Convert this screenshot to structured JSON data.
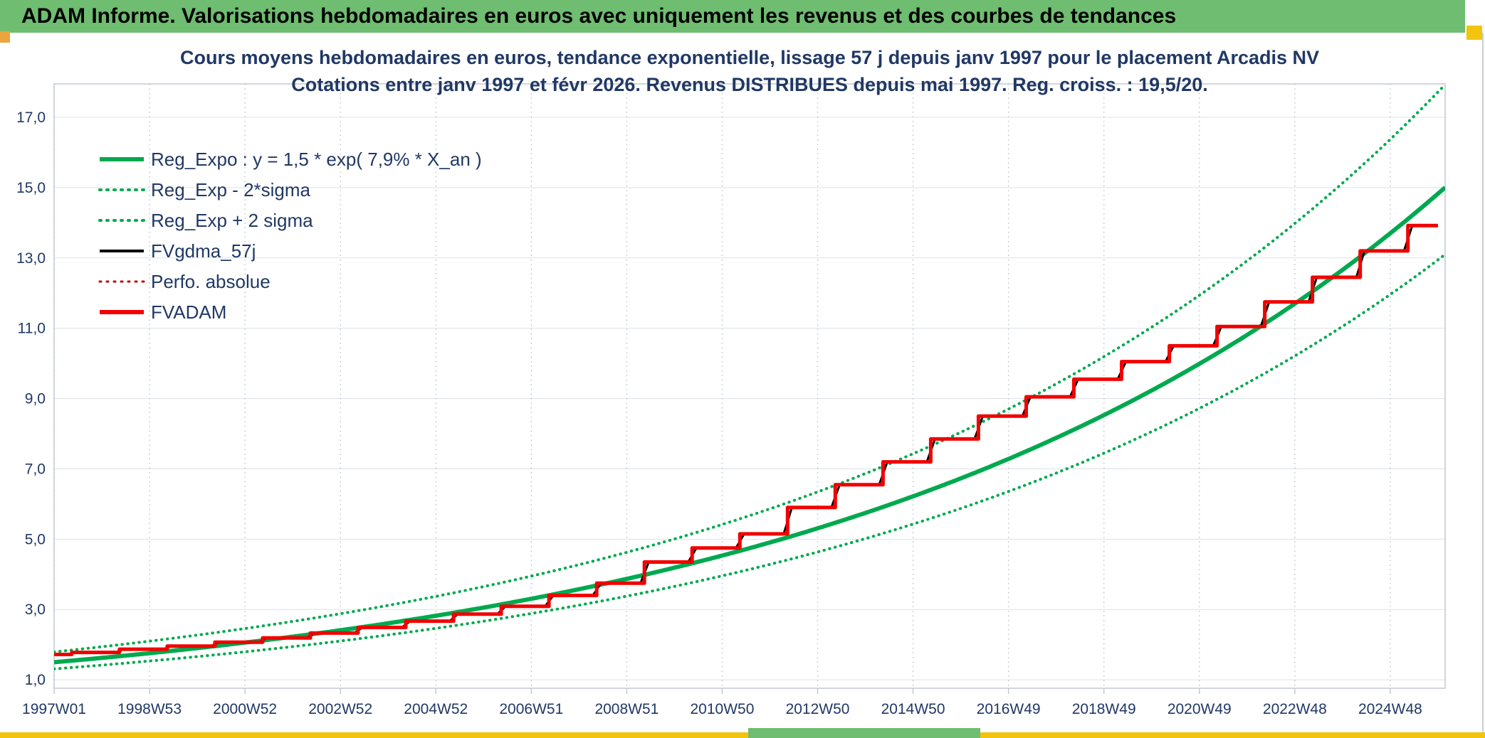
{
  "header": {
    "title": "ADAM Informe. Valorisations hebdomadaires en euros avec uniquement les revenus et des courbes de tendances"
  },
  "colors": {
    "header_green": "#6FBD70",
    "accent_yellow": "#F2C40E",
    "accent_orange": "#EAA63C",
    "edge_gray": "#C9CED4"
  },
  "chart_data": {
    "type": "line",
    "title": "Cours moyens hebdomadaires en euros, tendance exponentielle, lissage 57 j depuis janv 1997 pour le placement Arcadis NV",
    "subtitle": "Cotations entre janv 1997 et févr 2026. Revenus DISTRIBUES depuis mai 1997. Reg. croiss. : 19,5/20.",
    "colors": {
      "text": "#203864",
      "grid_h": "#DCE1E8",
      "grid_v": "#B9C1CB",
      "border": "#C3C9D1",
      "green": "#00A94F",
      "red": "#F20000",
      "dark_red": "#C00000",
      "black": "#000000"
    },
    "x_axis": {
      "start": 1997.0,
      "end": 2026.15,
      "ticks": [
        {
          "label": "1997W01",
          "year": 1997.0
        },
        {
          "label": "1998W53",
          "year": 1999.0
        },
        {
          "label": "2000W52",
          "year": 2001.0
        },
        {
          "label": "2002W52",
          "year": 2003.0
        },
        {
          "label": "2004W52",
          "year": 2005.0
        },
        {
          "label": "2006W51",
          "year": 2007.0
        },
        {
          "label": "2008W51",
          "year": 2009.0
        },
        {
          "label": "2010W50",
          "year": 2011.0
        },
        {
          "label": "2012W50",
          "year": 2013.0
        },
        {
          "label": "2014W50",
          "year": 2015.0
        },
        {
          "label": "2016W49",
          "year": 2017.0
        },
        {
          "label": "2018W49",
          "year": 2019.0
        },
        {
          "label": "2020W49",
          "year": 2021.0
        },
        {
          "label": "2022W48",
          "year": 2023.0
        },
        {
          "label": "2024W48",
          "year": 2025.0
        }
      ]
    },
    "y_axis": {
      "plot_min": 0.76,
      "plot_max": 17.95,
      "ticks": [
        {
          "label": "1,0",
          "value": 1
        },
        {
          "label": "3,0",
          "value": 3
        },
        {
          "label": "5,0",
          "value": 5
        },
        {
          "label": "7,0",
          "value": 7
        },
        {
          "label": "9,0",
          "value": 9
        },
        {
          "label": "11,0",
          "value": 11
        },
        {
          "label": "13,0",
          "value": 13
        },
        {
          "label": "15,0",
          "value": 15
        },
        {
          "label": "17,0",
          "value": 17
        }
      ]
    },
    "legend": [
      {
        "label": "Reg_Expo : y = 1,5 * exp( 7,9% *  X_an )",
        "color": "#00A94F",
        "width": 6,
        "dotted": false
      },
      {
        "label": "Reg_Exp - 2*sigma",
        "color": "#00A94F",
        "width": 4,
        "dotted": true
      },
      {
        "label": "Reg_Exp + 2 sigma",
        "color": "#00A94F",
        "width": 4,
        "dotted": true
      },
      {
        "label": "FVgdma_57j",
        "color": "#000000",
        "width": 4,
        "dotted": false
      },
      {
        "label": "Perfo. absolue",
        "color": "#C00000",
        "width": 3,
        "dotted": true
      },
      {
        "label": "FVADAM",
        "color": "#F20000",
        "width": 6,
        "dotted": false
      }
    ],
    "series": {
      "reg_expo": {
        "name": "Reg_Expo",
        "a": 1.5,
        "rate_pct": 7.9,
        "color": "#00A94F"
      },
      "sigma_minus": {
        "name": "Reg_Exp - 2*sigma",
        "factor": 0.873,
        "color": "#00A94F"
      },
      "sigma_plus": {
        "name": "Reg_Exp + 2 sigma",
        "factor": 1.195,
        "color": "#00A94F"
      },
      "fvgdma": {
        "name": "FVgdma_57j",
        "color": "#000000",
        "smooth_days": 57
      },
      "perfo": {
        "name": "Perfo. absolue",
        "color": "#C00000"
      },
      "fvadam": {
        "name": "FVADAM",
        "color": "#F20000",
        "start_value": 1.72,
        "end": 2026.0,
        "steps": [
          [
            1997.37,
            1.78
          ],
          [
            1998.37,
            1.87
          ],
          [
            1999.37,
            1.96
          ],
          [
            2000.37,
            2.07
          ],
          [
            2001.37,
            2.19
          ],
          [
            2002.37,
            2.33
          ],
          [
            2003.37,
            2.49
          ],
          [
            2004.37,
            2.67
          ],
          [
            2005.37,
            2.87
          ],
          [
            2006.37,
            3.09
          ],
          [
            2007.37,
            3.4
          ],
          [
            2008.37,
            3.75
          ],
          [
            2009.37,
            4.35
          ],
          [
            2010.37,
            4.75
          ],
          [
            2011.37,
            5.15
          ],
          [
            2012.37,
            5.9
          ],
          [
            2013.37,
            6.55
          ],
          [
            2014.37,
            7.2
          ],
          [
            2015.37,
            7.85
          ],
          [
            2016.37,
            8.5
          ],
          [
            2017.37,
            9.05
          ],
          [
            2018.37,
            9.55
          ],
          [
            2019.37,
            10.05
          ],
          [
            2020.37,
            10.5
          ],
          [
            2021.37,
            11.05
          ],
          [
            2022.37,
            11.75
          ],
          [
            2023.37,
            12.45
          ],
          [
            2024.37,
            13.2
          ],
          [
            2025.37,
            13.92
          ]
        ]
      }
    }
  }
}
